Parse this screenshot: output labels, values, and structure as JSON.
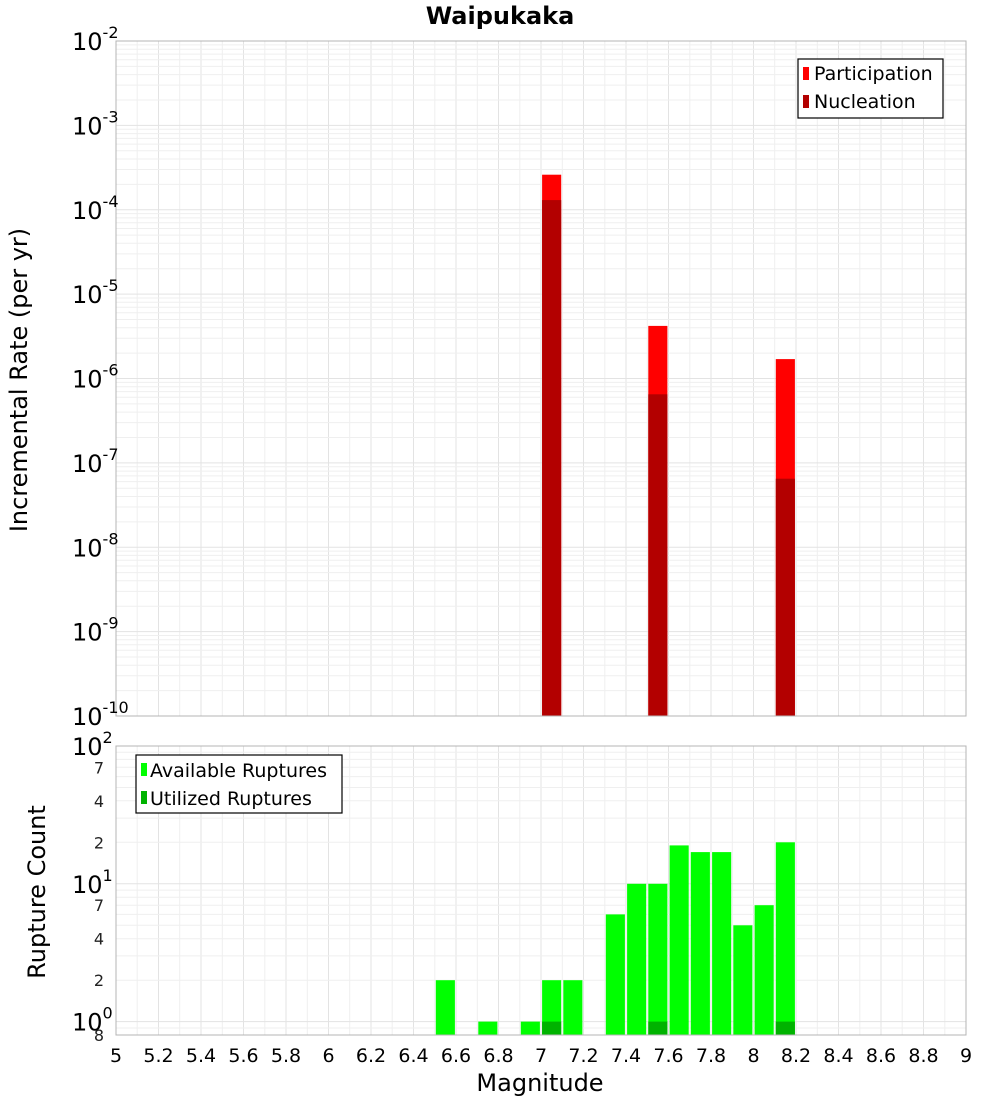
{
  "chart_data": [
    {
      "type": "bar",
      "title": "Waipukaka",
      "ylabel": "Incremental Rate (per yr)",
      "xlabel": "",
      "yscale": "log",
      "ylim": [
        1e-10,
        0.01
      ],
      "xlim": [
        5,
        9
      ],
      "bar_centers": [
        7.05,
        7.55,
        8.15
      ],
      "bar_width": 0.09,
      "yticks": [
        {
          "base": "10",
          "exp": "-10",
          "value": 1e-10
        },
        {
          "base": "10",
          "exp": "-9",
          "value": 1e-09
        },
        {
          "base": "10",
          "exp": "-8",
          "value": 1e-08
        },
        {
          "base": "10",
          "exp": "-7",
          "value": 1e-07
        },
        {
          "base": "10",
          "exp": "-6",
          "value": 1e-06
        },
        {
          "base": "10",
          "exp": "-5",
          "value": 1e-05
        },
        {
          "base": "10",
          "exp": "-4",
          "value": 0.0001
        },
        {
          "base": "10",
          "exp": "-3",
          "value": 0.001
        },
        {
          "base": "10",
          "exp": "-2",
          "value": 0.01
        }
      ],
      "series": [
        {
          "name": "Participation",
          "color": "#ff0000",
          "values": [
            0.00026,
            4.2e-06,
            1.7e-06
          ]
        },
        {
          "name": "Nucleation",
          "color": "#b30000",
          "values": [
            0.00013,
            6.5e-07,
            6.5e-08
          ]
        }
      ],
      "legend": "top-right",
      "grid": true
    },
    {
      "type": "bar",
      "title": "",
      "ylabel": "Rupture Count",
      "xlabel": "Magnitude",
      "yscale": "log",
      "ylim": [
        0.8,
        100
      ],
      "xlim": [
        5,
        9
      ],
      "bar_centers": [
        6.55,
        6.75,
        6.95,
        7.05,
        7.15,
        7.35,
        7.45,
        7.55,
        7.65,
        7.75,
        7.85,
        7.95,
        8.05,
        8.15
      ],
      "bar_width": 0.09,
      "xticks": [
        "5",
        "5.2",
        "5.4",
        "5.6",
        "5.8",
        "6",
        "6.2",
        "6.4",
        "6.6",
        "6.8",
        "7",
        "7.2",
        "7.4",
        "7.6",
        "7.8",
        "8",
        "8.2",
        "8.4",
        "8.6",
        "8.8",
        "9"
      ],
      "yticks": [
        {
          "base": "10",
          "exp": "0",
          "value": 1
        },
        {
          "base": "10",
          "exp": "1",
          "value": 10
        },
        {
          "base": "10",
          "exp": "2",
          "value": 100
        }
      ],
      "minor_tick_labels": [
        {
          "label": "8",
          "value": 0.8
        },
        {
          "label": "2",
          "value": 2
        },
        {
          "label": "4",
          "value": 4
        },
        {
          "label": "7",
          "value": 7
        },
        {
          "label": "2",
          "value": 20
        },
        {
          "label": "4",
          "value": 40
        },
        {
          "label": "7",
          "value": 70
        }
      ],
      "series": [
        {
          "name": "Available Ruptures",
          "color": "#00ff00",
          "values": [
            2,
            1,
            1,
            2,
            2,
            6,
            10,
            10,
            19,
            17,
            17,
            5,
            7,
            20
          ]
        },
        {
          "name": "Utilized Ruptures",
          "color": "#00b300",
          "values": [
            0,
            0,
            0,
            1,
            0,
            0,
            0,
            1,
            0,
            0,
            0,
            0,
            0,
            1
          ]
        }
      ],
      "legend": "top-left",
      "grid": true
    }
  ]
}
